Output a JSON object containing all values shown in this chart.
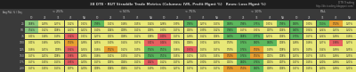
{
  "title": "38 DTE - RUT Straddle Trade Metrics (Columns: IVR, Profit Mgmt %)   Rows: Loss Mgmt %)",
  "watermark_line1": "DTR Trading",
  "watermark_line2": "http://dtr-trading.blogspot.com/",
  "col_label": "Avg P&L % / Day",
  "row_labels": [
    "25",
    "50",
    "75",
    "100",
    "125",
    "150",
    "175",
    "200"
  ],
  "group_names": [
    "< 25%",
    "< 50%",
    "< 75%",
    "< 10%",
    "P&L"
  ],
  "sub_cols": [
    "10",
    "25",
    "35",
    "45",
    "NA"
  ],
  "data": [
    [
      0.68,
      0.29,
      0.27,
      0.12,
      0.32,
      0.99,
      0.11,
      0.16,
      0.15,
      0.14,
      0.26,
      0.39,
      0.93,
      0.27,
      0.13,
      0.68,
      0.96,
      0.75,
      0.31,
      0.95,
      0.69,
      0.3,
      1.5,
      0.5,
      0.27
    ],
    [
      0.54,
      0.12,
      0.08,
      0.22,
      0.22,
      0.1,
      0.04,
      0.09,
      0.11,
      0.09,
      0.3,
      0.17,
      0.03,
      0.39,
      0.12,
      0.94,
      0.17,
      0.31,
      0.07,
      0.06,
      0.8,
      0.34,
      0.24,
      0.23,
      0.22
    ],
    [
      0.41,
      0.16,
      0.19,
      0.34,
      0.31,
      0.27,
      0.01,
      0.08,
      0.12,
      0.08,
      0.4,
      0.17,
      0.26,
      0.12,
      0.06,
      0.8,
      0.68,
      0.77,
      0.21,
      0.06,
      0.7,
      0.17,
      0.24,
      0.28,
      0.18
    ],
    [
      0.41,
      0.16,
      0.2,
      0.5,
      0.26,
      0.25,
      0.1,
      0.14,
      0.17,
      0.41,
      0.44,
      0.34,
      0.04,
      0.31,
      0.23,
      0.59,
      0.74,
      0.6,
      0.6,
      0.06,
      0.26,
      0.18,
      0.27,
      0.36,
      0.27
    ],
    [
      0.18,
      0.21,
      0.09,
      0.34,
      0.24,
      0.18,
      0.52,
      0.12,
      0.19,
      0.54,
      0.51,
      0.18,
      0.33,
      0.13,
      0.17,
      0.59,
      0.74,
      0.5,
      0.19,
      0.08,
      0.23,
      0.19,
      0.14,
      0.28,
      0.25
    ],
    [
      0.17,
      0.21,
      0.08,
      0.36,
      0.26,
      0.18,
      0.11,
      0.15,
      0.17,
      0.54,
      0.51,
      0.15,
      0.11,
      0.13,
      0.15,
      0.5,
      0.74,
      0.53,
      0.01,
      0.08,
      0.23,
      0.17,
      0.15,
      0.28,
      0.25
    ],
    [
      0.17,
      0.15,
      0.13,
      0.35,
      0.2,
      0.17,
      0.05,
      0.04,
      0.11,
      0.02,
      0.12,
      0.17,
      0.29,
      0.3,
      0.17,
      0.01,
      0.6,
      0.74,
      0.01,
      0.07,
      0.17,
      0.15,
      0.2,
      0.28,
      0.21
    ],
    [
      0.17,
      0.15,
      0.13,
      0.07,
      0.2,
      0.09,
      0.04,
      0.04,
      0.17,
      0.19,
      0.3,
      0.27,
      0.17,
      0.17,
      0.17,
      0.5,
      0.5,
      0.6,
      0.05,
      0.06,
      0.17,
      0.15,
      0.2,
      0.28,
      0.21
    ]
  ],
  "cell_colors": [
    [
      "#8bc87a",
      "#e8e87a",
      "#e8e878",
      "#e8e878",
      "#e8e878",
      "#5db85d",
      "#e8e878",
      "#e8e878",
      "#e8e878",
      "#e8e878",
      "#e8e878",
      "#e8e878",
      "#5db85d",
      "#e8e878",
      "#e8e878",
      "#5db85d",
      "#5db85d",
      "#5db85d",
      "#e8e878",
      "#5db85d",
      "#5db85d",
      "#e8e878",
      "#5db85d",
      "#e8a030",
      "#e8e878"
    ],
    [
      "#8bc87a",
      "#e8e878",
      "#e8e878",
      "#e8e878",
      "#e8e878",
      "#e8e878",
      "#e8e878",
      "#e8e878",
      "#e8e878",
      "#e8e878",
      "#e8e878",
      "#e8e878",
      "#e8e878",
      "#e8e878",
      "#e8e878",
      "#5db85d",
      "#e8e878",
      "#e8e878",
      "#e8e878",
      "#e8e878",
      "#5db85d",
      "#e8e878",
      "#e8e878",
      "#e8e878",
      "#e8e878"
    ],
    [
      "#e8e878",
      "#e8e878",
      "#e8e878",
      "#e86060",
      "#e8e878",
      "#e8e878",
      "#e8e878",
      "#e8e878",
      "#e8e878",
      "#e8e878",
      "#e86060",
      "#e8e878",
      "#e8e878",
      "#e8e878",
      "#e8e878",
      "#5db85d",
      "#5db85d",
      "#5db85d",
      "#e8e878",
      "#e8e878",
      "#5db85d",
      "#e8e878",
      "#e8e878",
      "#e8e878",
      "#e8e878"
    ],
    [
      "#e8e878",
      "#e8e878",
      "#e8e878",
      "#e8a030",
      "#e8e878",
      "#e8e878",
      "#e8e878",
      "#e8e878",
      "#e8e878",
      "#e86060",
      "#e86060",
      "#e8e878",
      "#e8e878",
      "#e8e878",
      "#e8e878",
      "#e8e878",
      "#5db85d",
      "#5db85d",
      "#5db85d",
      "#e8e878",
      "#e8e878",
      "#e8e878",
      "#e8e878",
      "#e86060",
      "#e8e878"
    ],
    [
      "#e8e878",
      "#e8e878",
      "#e8e878",
      "#e86060",
      "#e8e878",
      "#e8e878",
      "#e8a030",
      "#e8e878",
      "#e8e878",
      "#5db85d",
      "#5db85d",
      "#e8e878",
      "#e86060",
      "#e8e878",
      "#e8e878",
      "#e8e878",
      "#5db85d",
      "#e8a030",
      "#e8e878",
      "#e8e878",
      "#e8e878",
      "#e8e878",
      "#e8e878",
      "#e8e878",
      "#e8e878"
    ],
    [
      "#e8e878",
      "#e8e878",
      "#e8e878",
      "#e86060",
      "#e8e878",
      "#e8e878",
      "#e8e878",
      "#e8e878",
      "#e8e878",
      "#5db85d",
      "#5db85d",
      "#e8e878",
      "#e8e878",
      "#e8e878",
      "#e8e878",
      "#e8a030",
      "#5db85d",
      "#e8a030",
      "#e8e878",
      "#e8e878",
      "#e8e878",
      "#e8e878",
      "#e8e878",
      "#e8e878",
      "#e8e878"
    ],
    [
      "#e8e878",
      "#e8e878",
      "#e8e878",
      "#e86060",
      "#e8e878",
      "#e8e878",
      "#e8e878",
      "#e8e878",
      "#e8e878",
      "#e86060",
      "#e8e878",
      "#e8e878",
      "#e8e878",
      "#e8e878",
      "#e8e878",
      "#e8e878",
      "#5db85d",
      "#5db85d",
      "#e8e878",
      "#e8e878",
      "#e8e878",
      "#e8e878",
      "#e8e878",
      "#e8e878",
      "#e8e878"
    ],
    [
      "#e8e878",
      "#e8e878",
      "#e8e878",
      "#e8e878",
      "#e8e878",
      "#e8e878",
      "#e8e878",
      "#e8e878",
      "#e8e878",
      "#e8e878",
      "#e8e878",
      "#e8e878",
      "#e8e878",
      "#e8e878",
      "#e8e878",
      "#e8a030",
      "#e8a030",
      "#5db85d",
      "#e8e878",
      "#e8e878",
      "#e8e878",
      "#e8e878",
      "#e8e878",
      "#e8e878",
      "#e8e878"
    ]
  ],
  "bg_color": "#3a3a3a",
  "header_row_bg": "#2a2a2a",
  "text_color": "#cccccc",
  "title_color": "#c8c8c8",
  "watermark_color": "#888888",
  "cell_text_color": "#222222"
}
